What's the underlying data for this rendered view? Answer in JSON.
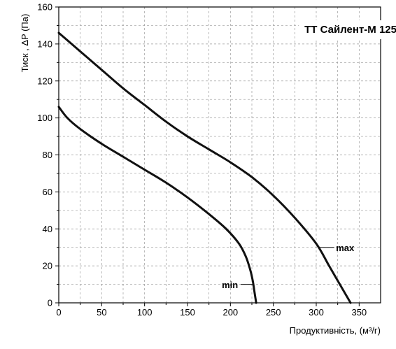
{
  "chart_data": {
    "type": "line",
    "title": "ТТ Сайлент-М 125",
    "xlabel": "Продуктивність, (м³/г)",
    "ylabel": "Тиск , ΔP (Па)",
    "xlim": [
      0,
      375
    ],
    "ylim": [
      0,
      160
    ],
    "xticks": [
      0,
      50,
      100,
      150,
      200,
      250,
      300,
      350
    ],
    "yticks": [
      0,
      20,
      40,
      60,
      80,
      100,
      120,
      140,
      160
    ],
    "grid": true,
    "series": [
      {
        "name": "max",
        "x": [
          0,
          25,
          50,
          75,
          100,
          125,
          150,
          175,
          200,
          225,
          250,
          275,
          300,
          315,
          330,
          340
        ],
        "y": [
          146,
          136,
          126,
          116,
          107,
          98,
          90,
          83,
          76,
          68,
          58,
          46,
          32,
          20,
          8,
          0
        ]
      },
      {
        "name": "min",
        "x": [
          0,
          10,
          25,
          50,
          75,
          100,
          125,
          150,
          175,
          195,
          210,
          218,
          223,
          226,
          228,
          230
        ],
        "y": [
          106,
          100,
          94,
          86,
          79,
          72,
          65,
          57,
          48,
          40,
          32,
          25,
          18,
          12,
          6,
          0
        ]
      }
    ]
  }
}
